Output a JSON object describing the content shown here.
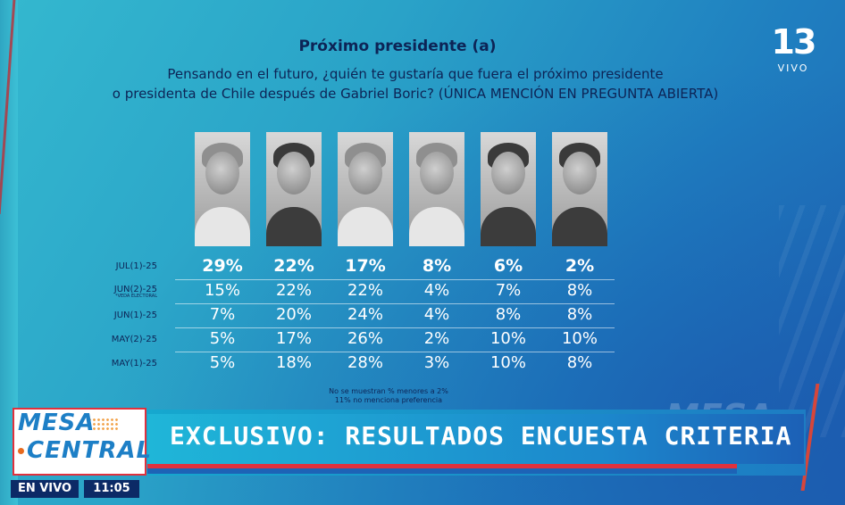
{
  "header": {
    "title": "Próximo presidente (a)",
    "question_line1": "Pensando en el futuro, ¿quién te gustaría que fuera el próximo presidente",
    "question_line2": "o presidenta de Chile después de Gabriel Boric? (ÚNICA MENCIÓN EN PREGUNTA ABIERTA)"
  },
  "channel": {
    "number": "13",
    "live_label": "VIVO"
  },
  "table": {
    "rows": [
      {
        "label": "JUL(1)-25",
        "note": "",
        "values": [
          "29%",
          "22%",
          "17%",
          "8%",
          "6%",
          "2%"
        ]
      },
      {
        "label": "JUN(2)-25",
        "note": "*VEDA ELECTORAL",
        "values": [
          "15%",
          "22%",
          "22%",
          "4%",
          "7%",
          "8%"
        ]
      },
      {
        "label": "JUN(1)-25",
        "note": "",
        "values": [
          "7%",
          "20%",
          "24%",
          "4%",
          "8%",
          "8%"
        ]
      },
      {
        "label": "MAY(2)-25",
        "note": "",
        "values": [
          "5%",
          "17%",
          "26%",
          "2%",
          "10%",
          "10%"
        ]
      },
      {
        "label": "MAY(1)-25",
        "note": "",
        "values": [
          "5%",
          "18%",
          "28%",
          "3%",
          "10%",
          "8%"
        ]
      }
    ]
  },
  "footnotes": {
    "line1": "No se muestran % menores a 2%",
    "line2": "11% no menciona preferencia"
  },
  "lower_third": {
    "show_line1": "MESA",
    "show_line2": "CENTRAL",
    "headline": "EXCLUSIVO: RESULTADOS ENCUESTA CRITERIA",
    "deco": "MESA",
    "live_badge": "EN VIVO",
    "time": "11:05"
  },
  "colors": {
    "title_navy": "#0d2456",
    "accent_red": "#e0313d",
    "accent_blue": "#1d7fc6"
  }
}
